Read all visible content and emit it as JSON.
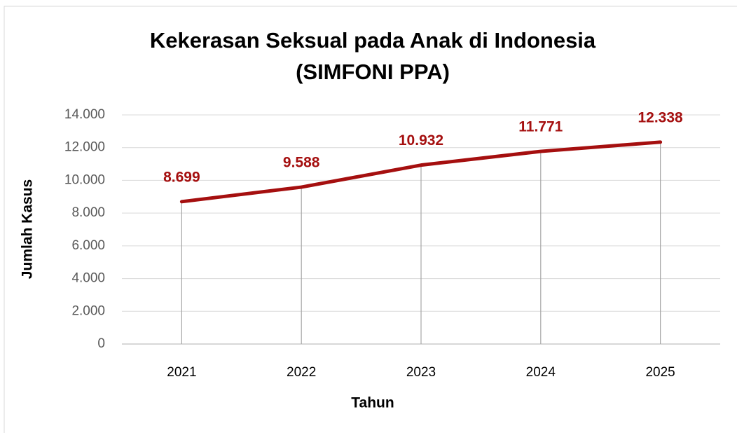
{
  "chart_data": {
    "type": "line",
    "title": "Kekerasan Seksual pada Anak di Indonesia",
    "subtitle": "(SIMFONI PPA)",
    "x_label": "Tahun",
    "y_label": "Jumlah Kasus",
    "categories": [
      "2021",
      "2022",
      "2023",
      "2024",
      "2025"
    ],
    "values": [
      8699,
      9588,
      10932,
      11771,
      12338
    ],
    "value_labels": [
      "8.699",
      "9.588",
      "10.932",
      "11.771",
      "12.338"
    ],
    "color": "#a50f0f",
    "ylim": [
      0,
      14000
    ],
    "yticks": [
      0,
      {
        "value": 2000,
        "label": "2.000"
      },
      {
        "value": 4000,
        "label": "4.000"
      },
      {
        "value": 6000,
        "label": "6.000"
      },
      {
        "value": 8000,
        "label": "8.000"
      },
      {
        "value": 10000,
        "label": "10.000"
      },
      {
        "value": 12000,
        "label": "12.000"
      },
      {
        "value": 14000,
        "label": "14.000"
      }
    ],
    "grid": true,
    "drop_lines": true
  }
}
